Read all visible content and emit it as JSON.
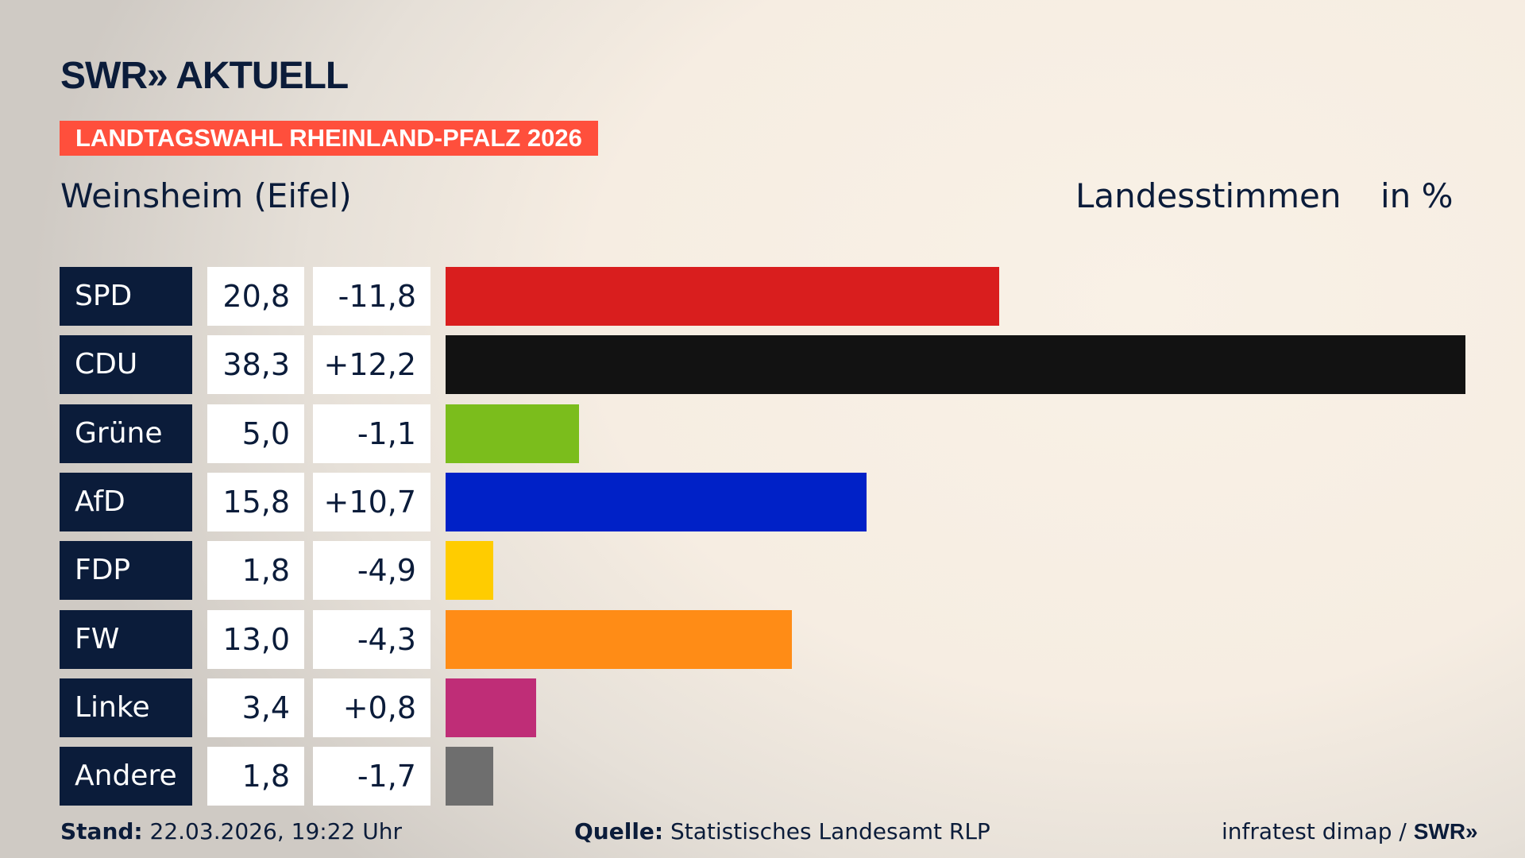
{
  "header": {
    "logo": "SWR» AKTUELL",
    "tag": "LANDTAGSWAHL RHEINLAND-PFALZ 2026",
    "location": "Weinsheim (Eifel)",
    "measure": "Landesstimmen",
    "unit": "in %"
  },
  "chart_data": {
    "type": "bar",
    "orientation": "horizontal",
    "xlim": [
      0,
      38.3
    ],
    "categories": [
      "SPD",
      "CDU",
      "Grüne",
      "AfD",
      "FDP",
      "FW",
      "Linke",
      "Andere"
    ],
    "values": [
      20.8,
      38.3,
      5.0,
      15.8,
      1.8,
      13.0,
      3.4,
      1.8
    ],
    "value_labels": [
      "20,8",
      "38,3",
      "5,0",
      "15,8",
      "1,8",
      "13,0",
      "3,4",
      "1,8"
    ],
    "changes": [
      "-11,8",
      "+12,2",
      "-1,1",
      "+10,7",
      "-4,9",
      "-4,3",
      "+0,8",
      "-1,7"
    ],
    "colors": [
      "#d91e1e",
      "#121212",
      "#7bbd1c",
      "#0021c7",
      "#ffcc00",
      "#ff8c16",
      "#bf2d77",
      "#6e6e6e"
    ]
  },
  "footer": {
    "stand_label": "Stand:",
    "stand": "22.03.2026, 19:22 Uhr",
    "source_label": "Quelle:",
    "source": "Statistisches Landesamt RLP",
    "credit": "infratest dimap /",
    "credit_logo": "SWR»"
  }
}
